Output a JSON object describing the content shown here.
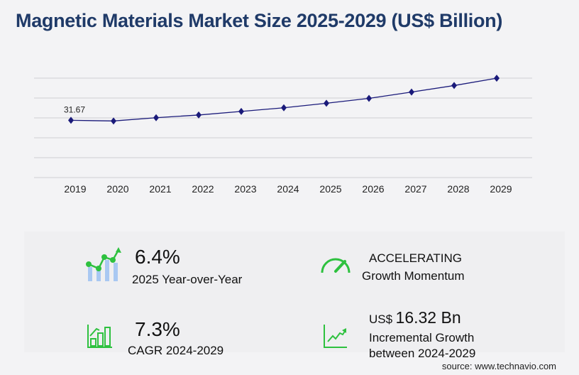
{
  "title": "Magnetic Materials Market Size 2025-2029 (US$ Billion)",
  "chart_data": {
    "type": "line",
    "categories": [
      "2019",
      "2020",
      "2021",
      "2022",
      "2023",
      "2024",
      "2025",
      "2026",
      "2027",
      "2028",
      "2029"
    ],
    "values": [
      31.67,
      31.3,
      33.1,
      34.6,
      36.6,
      38.6,
      41.1,
      43.8,
      47.3,
      50.9,
      54.95
    ],
    "data_labels": {
      "2019": "31.67"
    },
    "ylim": [
      0,
      55
    ],
    "grid": true,
    "line_color": "#1a1a7a"
  },
  "stats": {
    "yoy_value": "6.4%",
    "yoy_label": "2025 Year-over-Year",
    "momentum_value": "ACCELERATING",
    "momentum_label": "Growth Momentum",
    "cagr_value": "7.3%",
    "cagr_label": "CAGR 2024-2029",
    "incr_prefix": "US$",
    "incr_value": "16.32 Bn",
    "incr_label1": "Incremental Growth",
    "incr_label2": "between 2024-2029"
  },
  "source": "source: www.technavio.com",
  "colors": {
    "green": "#2ec13f",
    "blue_light": "#a9c8f2",
    "title": "#1f3a68"
  }
}
